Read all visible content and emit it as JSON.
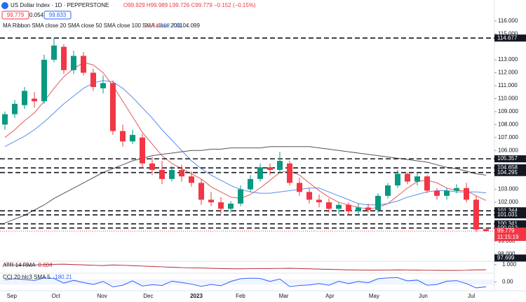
{
  "header": {
    "symbol": "US Dollar Index · 1D · PEPPERSTONE",
    "ohlc": "O99.929 H99.989 L99.726 C99.779 −0.152 (−0.15%)",
    "bid": "99.779",
    "spread": "0.054",
    "ask": "99.833",
    "ma_ribbon": "MA Ribbon SMA close 20 SMA close 50 SMA close 100 SMA close 200",
    "ma_values": [
      "102.140",
      "102.726",
      "104.099"
    ]
  },
  "chart_data": [
    {
      "type": "candlestick",
      "up_color": "#089981",
      "down_color": "#f23645",
      "open": [
        108.0,
        108.8,
        109.5,
        110.0,
        109.8,
        113.0,
        114.0,
        112.2,
        113.3,
        112.0,
        110.8,
        111.2,
        107.5,
        106.7,
        107.0,
        105.0,
        104.5,
        103.8,
        104.5,
        104.0,
        103.5,
        102.2,
        102.0,
        101.5,
        101.9,
        103.0,
        103.8,
        104.7,
        104.5,
        105.0,
        103.5,
        102.8,
        102.2,
        102.0,
        101.5,
        101.8,
        101.3,
        101.6,
        101.4,
        102.5,
        103.3,
        104.2,
        103.6,
        104.0,
        102.9,
        102.5,
        102.9,
        103.1,
        102.2,
        99.929
      ],
      "high": [
        109.0,
        109.9,
        110.9,
        110.5,
        113.4,
        114.7,
        114.2,
        113.7,
        113.6,
        112.3,
        111.8,
        111.4,
        108.0,
        107.6,
        107.3,
        105.5,
        105.2,
        104.8,
        104.9,
        104.4,
        103.8,
        102.8,
        102.4,
        102.1,
        103.3,
        104.1,
        105.0,
        105.0,
        105.9,
        105.2,
        103.9,
        103.1,
        102.6,
        102.3,
        102.0,
        102.0,
        101.9,
        101.9,
        102.7,
        103.5,
        104.5,
        104.3,
        104.3,
        104.1,
        103.1,
        103.1,
        103.4,
        103.5,
        102.5,
        99.989
      ],
      "low": [
        107.6,
        108.5,
        109.2,
        109.3,
        109.6,
        112.8,
        111.9,
        111.9,
        111.8,
        110.6,
        110.4,
        107.2,
        106.3,
        106.5,
        104.6,
        104.1,
        103.4,
        103.6,
        103.6,
        103.2,
        101.8,
        101.7,
        101.1,
        101.2,
        101.7,
        102.8,
        103.6,
        104.1,
        104.3,
        103.3,
        102.5,
        101.9,
        101.6,
        101.2,
        101.1,
        101.0,
        101.1,
        101.2,
        101.2,
        102.3,
        103.1,
        103.4,
        103.3,
        102.7,
        102.2,
        102.2,
        102.7,
        102.0,
        99.7,
        99.726
      ],
      "close": [
        108.8,
        109.6,
        110.6,
        109.8,
        113.0,
        114.1,
        112.2,
        113.3,
        112.0,
        110.9,
        111.2,
        107.5,
        106.7,
        107.2,
        105.0,
        104.5,
        103.8,
        104.5,
        104.0,
        103.5,
        102.2,
        102.0,
        101.5,
        101.9,
        103.0,
        103.8,
        104.7,
        104.5,
        105.2,
        103.5,
        102.8,
        102.2,
        102.0,
        101.5,
        101.8,
        101.3,
        101.6,
        101.4,
        102.5,
        103.3,
        104.2,
        103.6,
        104.0,
        102.9,
        102.5,
        102.9,
        103.1,
        102.2,
        99.9,
        99.779
      ],
      "series": [
        {
          "name": "SMA close 20",
          "color": "#e05a5a",
          "values": [
            107.0,
            107.6,
            108.3,
            108.9,
            109.8,
            110.8,
            111.7,
            112.3,
            112.8,
            112.6,
            112.0,
            111.0,
            109.8,
            108.6,
            107.4,
            106.5,
            105.6,
            105.0,
            104.6,
            104.2,
            103.8,
            103.2,
            102.8,
            102.4,
            102.3,
            102.6,
            103.1,
            103.7,
            104.3,
            104.4,
            104.1,
            103.5,
            102.9,
            102.4,
            102.0,
            101.8,
            101.6,
            101.5,
            101.6,
            101.9,
            102.5,
            103.1,
            103.6,
            103.7,
            103.5,
            103.1,
            102.9,
            102.9,
            102.5,
            102.14
          ]
        },
        {
          "name": "SMA close 50",
          "color": "#5b8def",
          "values": [
            106.3,
            106.7,
            107.1,
            107.6,
            108.2,
            108.9,
            109.6,
            110.2,
            110.8,
            111.2,
            111.4,
            111.3,
            110.8,
            110.1,
            109.3,
            108.5,
            107.6,
            106.8,
            106.0,
            105.2,
            104.6,
            104.1,
            103.7,
            103.3,
            103.0,
            102.8,
            102.7,
            102.7,
            102.8,
            102.9,
            103.0,
            103.1,
            103.1,
            102.8,
            102.5,
            102.2,
            101.9,
            101.8,
            101.8,
            101.9,
            102.1,
            102.4,
            102.6,
            102.8,
            102.9,
            102.9,
            102.8,
            102.8,
            102.8,
            102.726
          ]
        },
        {
          "name": "SMA close 200",
          "color": "#555555",
          "values": [
            100.4,
            100.7,
            101.0,
            101.4,
            101.8,
            102.3,
            102.7,
            103.1,
            103.5,
            103.9,
            104.3,
            104.6,
            104.9,
            105.2,
            105.4,
            105.6,
            105.7,
            105.8,
            105.9,
            106.0,
            106.0,
            106.1,
            106.1,
            106.2,
            106.2,
            106.2,
            106.2,
            106.3,
            106.3,
            106.3,
            106.3,
            106.3,
            106.2,
            106.1,
            106.0,
            105.9,
            105.8,
            105.7,
            105.6,
            105.5,
            105.4,
            105.3,
            105.2,
            105.1,
            104.9,
            104.7,
            104.6,
            104.4,
            104.2,
            104.099
          ]
        }
      ],
      "levels": [
        114.677,
        105.357,
        104.658,
        104.295,
        101.344,
        101.031,
        100.341,
        100.012
      ],
      "current_price": 99.779,
      "countdown": "11:15:19",
      "low_marker": 97.699,
      "xlim": [
        -0.5,
        49.5
      ],
      "xticks": [
        {
          "value": 0.7,
          "label": "Sep"
        },
        {
          "value": 5.2,
          "label": "Oct"
        },
        {
          "value": 9.9,
          "label": "Nov"
        },
        {
          "value": 14.6,
          "label": "Dec"
        },
        {
          "value": 19.5,
          "label": "2023"
        },
        {
          "value": 24,
          "label": "Feb"
        },
        {
          "value": 28.4,
          "label": "Mar"
        },
        {
          "value": 33.1,
          "label": "Apr"
        },
        {
          "value": 37.6,
          "label": "May"
        },
        {
          "value": 42.6,
          "label": "Jun"
        },
        {
          "value": 47.5,
          "label": "Jul"
        }
      ],
      "ylim": [
        97.45,
        117.18
      ],
      "yticks": [
        {
          "value": 116,
          "label": "116.000"
        },
        {
          "value": 115,
          "label": "115.000"
        },
        {
          "value": 113,
          "label": "113.000"
        },
        {
          "value": 112,
          "label": "112.000"
        },
        {
          "value": 111,
          "label": "111.000"
        },
        {
          "value": 110,
          "label": "110.000"
        },
        {
          "value": 109,
          "label": "109.000"
        },
        {
          "value": 108,
          "label": "108.000"
        },
        {
          "value": 107,
          "label": "107.000"
        },
        {
          "value": 106,
          "label": "106.000"
        },
        {
          "value": 103,
          "label": "103.000"
        },
        {
          "value": 102,
          "label": "102.000"
        },
        {
          "value": 99,
          "label": "99.000"
        },
        {
          "value": 98,
          "label": "98.000"
        }
      ]
    },
    {
      "type": "line",
      "title": "ATR 14 RMA",
      "color": "#b22833",
      "values": [
        0.98,
        0.97,
        0.96,
        0.97,
        1.0,
        1.02,
        1.03,
        1.0,
        0.98,
        0.95,
        0.93,
        0.97,
        0.95,
        0.92,
        0.89,
        0.86,
        0.83,
        0.8,
        0.77,
        0.75,
        0.74,
        0.72,
        0.7,
        0.68,
        0.68,
        0.69,
        0.7,
        0.7,
        0.71,
        0.72,
        0.7,
        0.68,
        0.66,
        0.64,
        0.62,
        0.6,
        0.59,
        0.58,
        0.58,
        0.59,
        0.6,
        0.59,
        0.58,
        0.57,
        0.57,
        0.56,
        0.56,
        0.57,
        0.6,
        0.604
      ],
      "ylim": [
        0.4,
        1.2
      ],
      "yticks": [
        {
          "value": 1,
          "label": "1.000"
        }
      ]
    },
    {
      "type": "line",
      "title": "CCI 20 hlc3 SMA 5",
      "color": "#2962ff",
      "values": [
        80,
        120,
        90,
        60,
        150,
        130,
        -40,
        60,
        -20,
        -90,
        20,
        -180,
        -120,
        40,
        -150,
        -100,
        -130,
        30,
        -20,
        -80,
        -160,
        -90,
        -140,
        20,
        120,
        140,
        130,
        20,
        110,
        -170,
        -130,
        -110,
        -60,
        -120,
        30,
        -60,
        20,
        -30,
        120,
        150,
        160,
        40,
        70,
        -120,
        -90,
        30,
        50,
        -60,
        -220,
        -180.21
      ],
      "ylim": [
        -300,
        300
      ],
      "yticks": [
        {
          "value": 0,
          "label": "0.00"
        }
      ]
    }
  ]
}
